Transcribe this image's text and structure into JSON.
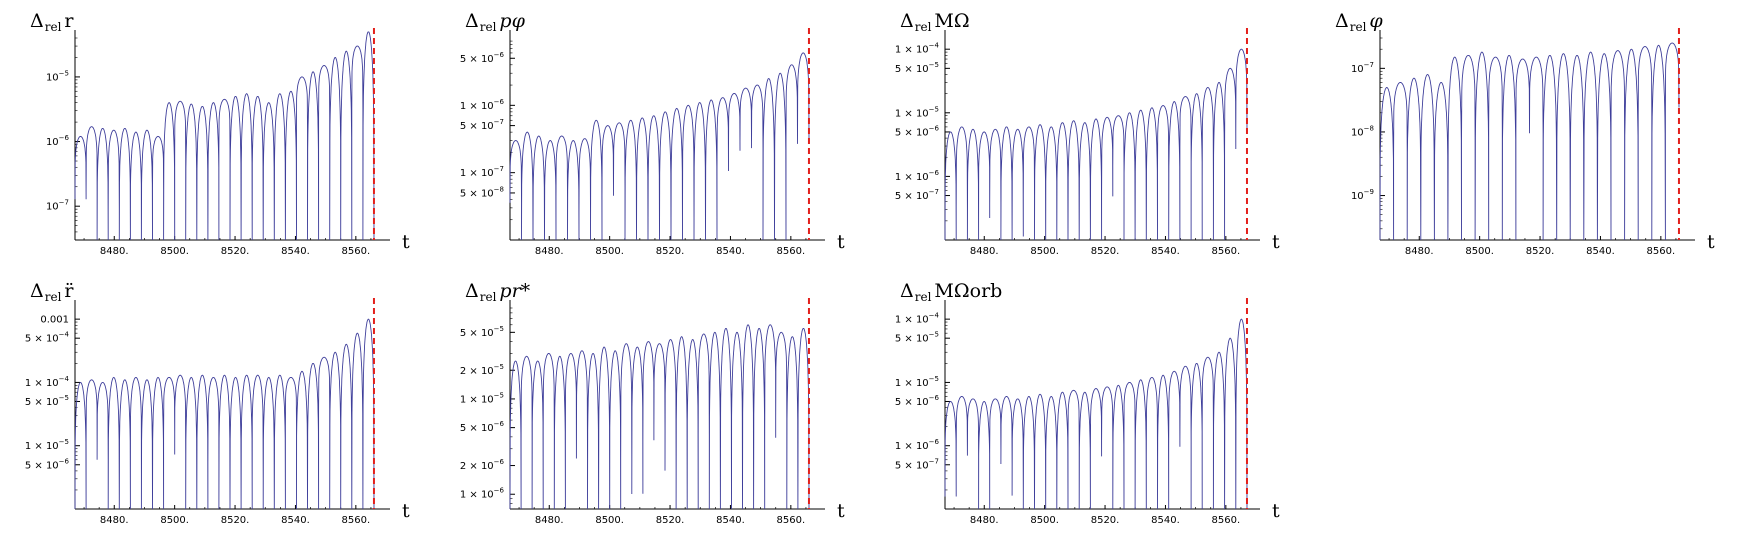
{
  "colors": {
    "series": "#3f3f9b",
    "marker": "#e3201b",
    "axis": "#000000"
  },
  "chart_data": [
    {
      "type": "line",
      "title_parts": [
        "Δ",
        "rel",
        "r"
      ],
      "xlabel": "t",
      "ylabel": "",
      "scale_y": "log",
      "xlim": [
        8467,
        8568
      ],
      "ylim": [
        3e-08,
        4e-05
      ],
      "xticks": [
        8480,
        8500,
        8520,
        8540,
        8560
      ],
      "xtick_labels": [
        "8480.",
        "8500.",
        "8520.",
        "8540.",
        "8560."
      ],
      "yticks": [
        1e-07,
        1e-06,
        1e-05
      ],
      "ytick_labels": [
        [
          "10",
          "−7"
        ],
        [
          "10",
          "−6"
        ],
        [
          "10",
          "−5"
        ]
      ],
      "marker_x": 8566,
      "series": [
        {
          "x": [
            8467,
            8470,
            8474,
            8478,
            8482,
            8486,
            8490,
            8494,
            8498,
            8502,
            8506,
            8510,
            8514,
            8518,
            8522,
            8526,
            8530,
            8534,
            8538,
            8542,
            8546,
            8550,
            8554,
            8558,
            8562,
            8565,
            8567
          ],
          "peaks": [
            1.2e-06,
            1.7e-06,
            1.6e-06,
            1.5e-06,
            1.6e-06,
            1.4e-06,
            1.5e-06,
            1.2e-06,
            4e-06,
            4.2e-06,
            3.8e-06,
            3.5e-06,
            4e-06,
            4.5e-06,
            5e-06,
            5.5e-06,
            5e-06,
            4e-06,
            5.5e-06,
            6e-06,
            1e-05,
            1.2e-05,
            1.5e-05,
            2e-05,
            2.5e-05,
            3e-05,
            5e-05
          ]
        }
      ]
    },
    {
      "type": "line",
      "title_parts": [
        "Δ",
        "rel",
        "pφ"
      ],
      "xlabel": "t",
      "ylabel": "",
      "scale_y": "log",
      "xlim": [
        8467,
        8568
      ],
      "ylim": [
        1e-08,
        1e-05
      ],
      "xticks": [
        8480,
        8500,
        8520,
        8540,
        8560
      ],
      "xtick_labels": [
        "8480.",
        "8500.",
        "8520.",
        "8540.",
        "8560."
      ],
      "yticks": [
        5e-08,
        1e-07,
        5e-07,
        1e-06,
        5e-06
      ],
      "ytick_labels": [
        [
          "5 × 10",
          "−8"
        ],
        [
          "1 × 10",
          "−7"
        ],
        [
          "5 × 10",
          "−7"
        ],
        [
          "1 × 10",
          "−6"
        ],
        [
          "5 × 10",
          "−6"
        ]
      ],
      "marker_x": 8566,
      "series": [
        {
          "peaks": [
            3e-07,
            4e-07,
            3.5e-07,
            3e-07,
            3.5e-07,
            3e-07,
            3.2e-07,
            6e-07,
            5e-07,
            5.5e-07,
            6e-07,
            6.5e-07,
            7e-07,
            8e-07,
            9e-07,
            1e-06,
            1.1e-06,
            1.2e-06,
            1.3e-06,
            1.5e-06,
            1.8e-06,
            2e-06,
            2.5e-06,
            3e-06,
            4e-06,
            6e-06
          ]
        }
      ]
    },
    {
      "type": "line",
      "title_parts": [
        "Δ",
        "rel",
        "MΩ"
      ],
      "xlabel": "t",
      "ylabel": "",
      "scale_y": "log",
      "xlim": [
        8467,
        8568
      ],
      "ylim": [
        1e-07,
        0.00015
      ],
      "xticks": [
        8480,
        8500,
        8520,
        8540,
        8560
      ],
      "xtick_labels": [
        "8480.",
        "8500.",
        "8520.",
        "8540.",
        "8560."
      ],
      "yticks": [
        5e-07,
        1e-06,
        5e-06,
        1e-05,
        5e-05,
        0.0001
      ],
      "ytick_labels": [
        [
          "5 × 10",
          "−7"
        ],
        [
          "1 × 10",
          "−6"
        ],
        [
          "5 × 10",
          "−6"
        ],
        [
          "1 × 10",
          "−5"
        ],
        [
          "5 × 10",
          "−5"
        ],
        [
          "1 × 10",
          "−4"
        ]
      ],
      "marker_x": 8567,
      "series": [
        {
          "peaks": [
            5e-06,
            6e-06,
            5.5e-06,
            5e-06,
            5.5e-06,
            6e-06,
            5.5e-06,
            6e-06,
            6.5e-06,
            6e-06,
            7e-06,
            7.5e-06,
            7e-06,
            8e-06,
            8.5e-06,
            9e-06,
            1e-05,
            1.1e-05,
            1.2e-05,
            1.3e-05,
            1.5e-05,
            1.8e-05,
            2e-05,
            2.5e-05,
            3e-05,
            5e-05,
            0.0001
          ]
        }
      ]
    },
    {
      "type": "line",
      "title_parts": [
        "Δ",
        "rel",
        "φ"
      ],
      "xlabel": "t",
      "ylabel": "",
      "scale_y": "log",
      "xlim": [
        8467,
        8568
      ],
      "ylim": [
        2e-10,
        3e-07
      ],
      "xticks": [
        8480,
        8500,
        8520,
        8540,
        8560
      ],
      "xtick_labels": [
        "8480.",
        "8500.",
        "8520.",
        "8540.",
        "8560."
      ],
      "yticks": [
        1e-09,
        1e-08,
        1e-07
      ],
      "ytick_labels": [
        [
          "10",
          "−9"
        ],
        [
          "10",
          "−8"
        ],
        [
          "10",
          "−7"
        ]
      ],
      "marker_x": 8566,
      "series": [
        {
          "peaks": [
            5e-08,
            6e-08,
            7e-08,
            8e-08,
            6e-08,
            1.5e-07,
            1.6e-07,
            1.8e-07,
            1.5e-07,
            1.6e-07,
            1.4e-07,
            1.5e-07,
            1.6e-07,
            1.7e-07,
            1.6e-07,
            1.8e-07,
            1.7e-07,
            1.9e-07,
            2e-07,
            2.2e-07,
            2.3e-07,
            2.5e-07
          ]
        }
      ]
    },
    {
      "type": "line",
      "title_parts": [
        "Δ",
        "rel",
        "r̈"
      ],
      "xlabel": "t",
      "ylabel": "",
      "scale_y": "log",
      "xlim": [
        8467,
        8568
      ],
      "ylim": [
        1e-06,
        0.0015
      ],
      "xticks": [
        8480,
        8500,
        8520,
        8540,
        8560
      ],
      "xtick_labels": [
        "8480.",
        "8500.",
        "8520.",
        "8540.",
        "8560."
      ],
      "yticks": [
        5e-06,
        1e-05,
        5e-05,
        0.0001,
        0.0005,
        0.001
      ],
      "ytick_labels": [
        [
          "5 × 10",
          "−6"
        ],
        [
          "1 × 10",
          "−5"
        ],
        [
          "5 × 10",
          "−5"
        ],
        [
          "1 × 10",
          "−4"
        ],
        [
          "5 × 10",
          "−4"
        ],
        [
          "0.001",
          ""
        ]
      ],
      "marker_x": 8566,
      "series": [
        {
          "peaks": [
            0.0001,
            0.00011,
            0.0001,
            0.00012,
            0.00011,
            0.00012,
            0.00011,
            0.00012,
            0.00012,
            0.00013,
            0.00012,
            0.00013,
            0.00012,
            0.00013,
            0.00012,
            0.00013,
            0.00013,
            0.00012,
            0.00013,
            0.00012,
            0.00015,
            0.0002,
            0.00025,
            0.0003,
            0.0004,
            0.0006,
            0.001
          ]
        }
      ]
    },
    {
      "type": "line",
      "title_parts": [
        "Δ",
        "rel",
        "pr*"
      ],
      "xlabel": "t",
      "ylabel": "",
      "scale_y": "log",
      "xlim": [
        8467,
        8568
      ],
      "ylim": [
        7e-07,
        9e-05
      ],
      "xticks": [
        8480,
        8500,
        8520,
        8540,
        8560
      ],
      "xtick_labels": [
        "8480.",
        "8500.",
        "8520.",
        "8540.",
        "8560."
      ],
      "yticks": [
        1e-06,
        2e-06,
        5e-06,
        1e-05,
        2e-05,
        5e-05
      ],
      "ytick_labels": [
        [
          "1 × 10",
          "−6"
        ],
        [
          "2 × 10",
          "−6"
        ],
        [
          "5 × 10",
          "−6"
        ],
        [
          "1 × 10",
          "−5"
        ],
        [
          "2 × 10",
          "−5"
        ],
        [
          "5 × 10",
          "−5"
        ]
      ],
      "marker_x": 8566,
      "series": [
        {
          "peaks": [
            2.5e-05,
            2.8e-05,
            2.5e-05,
            3e-05,
            2.8e-05,
            3e-05,
            3.2e-05,
            3e-05,
            3.5e-05,
            3.2e-05,
            3.8e-05,
            3.5e-05,
            4e-05,
            3.8e-05,
            4.2e-05,
            4.5e-05,
            4.2e-05,
            4.8e-05,
            5e-05,
            5.5e-05,
            5e-05,
            6e-05,
            5.5e-05,
            6e-05,
            5e-05,
            4.5e-05,
            5.5e-05
          ]
        }
      ]
    },
    {
      "type": "line",
      "title_parts": [
        "Δ",
        "rel",
        "MΩorb"
      ],
      "xlabel": "t",
      "ylabel": "",
      "scale_y": "log",
      "xlim": [
        8467,
        8568
      ],
      "ylim": [
        1e-07,
        0.00015
      ],
      "xticks": [
        8480,
        8500,
        8520,
        8540,
        8560
      ],
      "xtick_labels": [
        "8480.",
        "8500.",
        "8520.",
        "8540.",
        "8560."
      ],
      "yticks": [
        5e-07,
        1e-06,
        5e-06,
        1e-05,
        5e-05,
        0.0001
      ],
      "ytick_labels": [
        [
          "5 × 10",
          "−7"
        ],
        [
          "1 × 10",
          "−6"
        ],
        [
          "5 × 10",
          "−6"
        ],
        [
          "1 × 10",
          "−5"
        ],
        [
          "5 × 10",
          "−5"
        ],
        [
          "1 × 10",
          "−4"
        ]
      ],
      "marker_x": 8567,
      "series": [
        {
          "peaks": [
            5e-06,
            6e-06,
            5.5e-06,
            5e-06,
            5.5e-06,
            6e-06,
            5.5e-06,
            6e-06,
            6.5e-06,
            6e-06,
            7e-06,
            7.5e-06,
            7e-06,
            8e-06,
            8.5e-06,
            9e-06,
            1e-05,
            1.1e-05,
            1.2e-05,
            1.3e-05,
            1.5e-05,
            1.8e-05,
            2e-05,
            2.5e-05,
            3e-05,
            5e-05,
            0.0001
          ]
        }
      ]
    }
  ]
}
